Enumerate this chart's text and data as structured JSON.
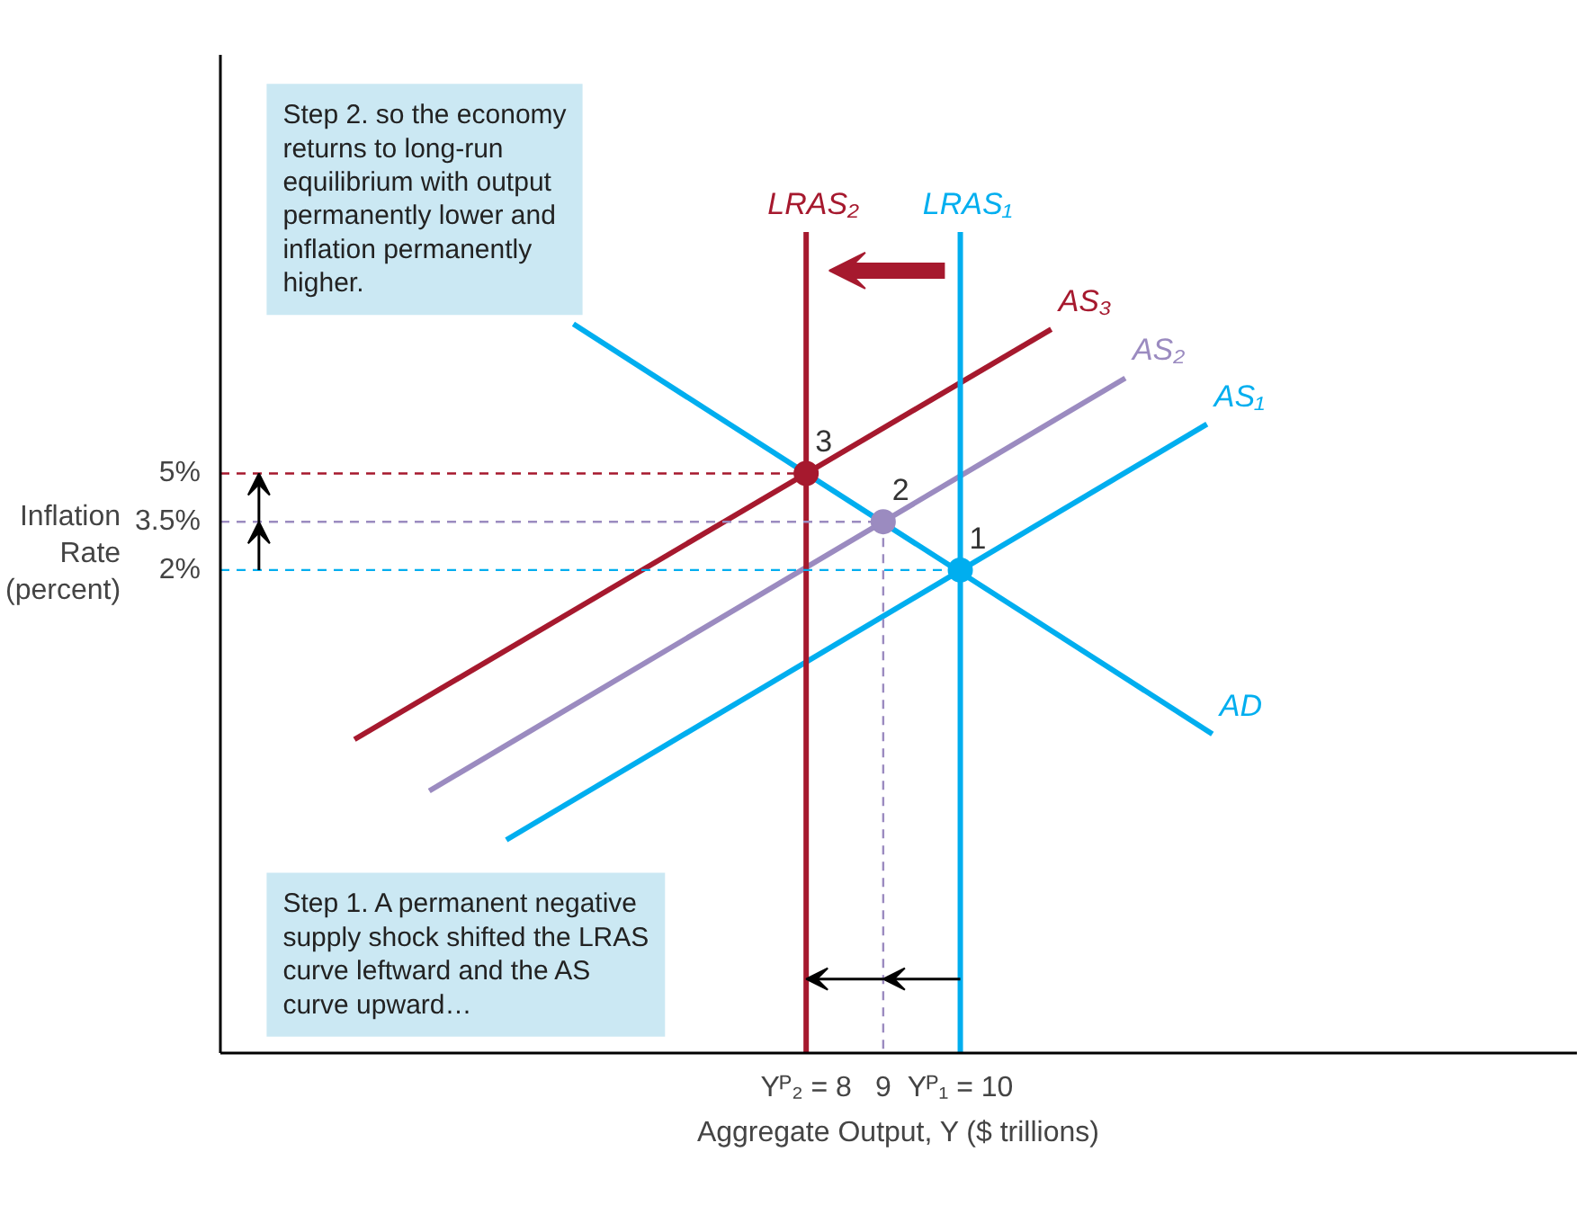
{
  "chart_data": {
    "type": "line",
    "xlabel": "Aggregate Output, Y ($ trillions)",
    "ylabel": "Inflation Rate (percent)",
    "xlim": [
      0.4,
      18
    ],
    "ylim": [
      -13,
      18
    ],
    "xticks": [
      {
        "value": 8,
        "label": "Yᴾ₂ = 8"
      },
      9,
      {
        "value": 10,
        "label": "Yᴾ₁ = 10"
      }
    ],
    "yticks": [
      {
        "value": 2,
        "label": "2%"
      },
      {
        "value": 3.5,
        "label": "3.5%"
      },
      {
        "value": 5,
        "label": "5%"
      }
    ],
    "grid": false,
    "series": [
      {
        "name": "AD",
        "color": "#00aeef",
        "x": [
          4.98,
          13.27
        ],
        "values": [
          9.64,
          -3.09
        ]
      },
      {
        "name": "AS₁",
        "color": "#00aeef",
        "x": [
          4.11,
          13.2
        ],
        "values": [
          -6.38,
          6.53
        ]
      },
      {
        "name": "AS₂",
        "color": "#9b8bc0",
        "x": [
          3.11,
          12.14
        ],
        "values": [
          -4.86,
          7.96
        ]
      },
      {
        "name": "AS₃",
        "color": "#a6192e",
        "x": [
          2.14,
          11.18
        ],
        "values": [
          -3.26,
          9.48
        ]
      },
      {
        "name": "LRAS₁",
        "color": "#00aeef",
        "x": [
          10,
          10
        ],
        "values": [
          -13,
          12.5
        ]
      },
      {
        "name": "LRAS₂",
        "color": "#a6192e",
        "x": [
          8,
          8
        ],
        "values": [
          -13,
          12.5
        ]
      },
      {
        "color": "#a6192e",
        "line_style": "dashed",
        "x": [
          0.4,
          8
        ],
        "values": [
          5,
          5
        ]
      },
      {
        "color": "#9b8bc0",
        "line_style": "dashed",
        "x": [
          0.4,
          9
        ],
        "values": [
          3.5,
          3.5
        ]
      },
      {
        "color": "#00aeef",
        "line_style": "dashed",
        "x": [
          0.4,
          10
        ],
        "values": [
          2,
          2
        ]
      },
      {
        "color": "#9b8bc0",
        "line_style": "dashed",
        "x": [
          9,
          9
        ],
        "values": [
          3.5,
          -13
        ]
      },
      {
        "type": "scatter",
        "marker": "circle",
        "x": [
          8,
          9,
          10
        ],
        "values": [
          5,
          3.5,
          2
        ],
        "colors": [
          "#a6192e",
          "#9b8bc0",
          "#00aeef"
        ]
      }
    ],
    "annotations": [
      "Step 2. so the economy returns to long-run equilibrium with output permanently lower and inflation permanently higher.",
      "Step 1. A permanent negative supply shock shifted the LRAS curve leftward and the AS curve upward…",
      {
        "text": "3",
        "x": 8,
        "y": 5
      },
      {
        "text": "2",
        "x": 9,
        "y": 3.5
      },
      {
        "text": "1",
        "x": 10,
        "y": 2
      }
    ]
  }
}
